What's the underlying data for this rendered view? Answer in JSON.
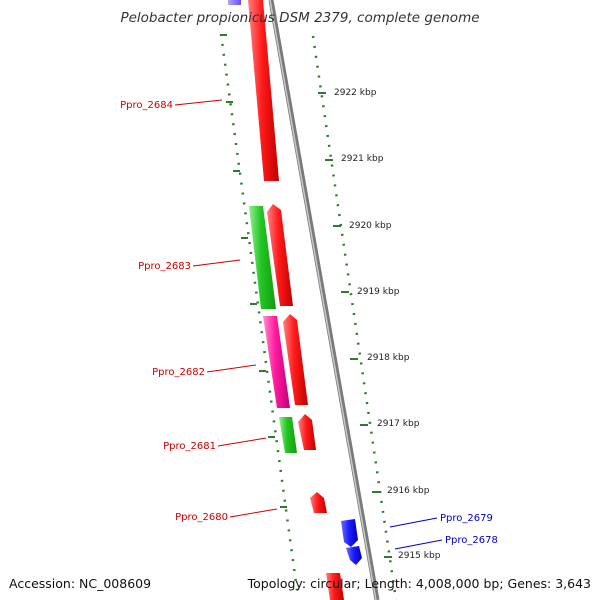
{
  "title": "Pelobacter propionicus DSM 2379, complete genome",
  "footer": {
    "accession": "Accession: NC_008609",
    "summary": "Topology: circular; Length: 4,008,000 bp; Genes: 3,643"
  },
  "colors": {
    "backbone": "#8c8c8c",
    "forward_gene": "#ff1a1a",
    "reverse_gene": "#1a1aff",
    "green_feature": "#22c522",
    "magenta_feature": "#ff1aa0",
    "purple_feature": "#7a5cff",
    "tick": "#2f7a2f",
    "label_forward": "#cc0000",
    "label_reverse": "#0000cc"
  },
  "scale_labels": [
    "2922 kbp",
    "2921 kbp",
    "2920 kbp",
    "2919 kbp",
    "2918 kbp",
    "2917 kbp",
    "2916 kbp",
    "2915 kbp"
  ],
  "gene_labels": [
    {
      "id": "Ppro_2684",
      "text": "Ppro_2684",
      "strand": "forward"
    },
    {
      "id": "Ppro_2683",
      "text": "Ppro_2683",
      "strand": "forward"
    },
    {
      "id": "Ppro_2682",
      "text": "Ppro_2682",
      "strand": "forward"
    },
    {
      "id": "Ppro_2681",
      "text": "Ppro_2681",
      "strand": "forward"
    },
    {
      "id": "Ppro_2680",
      "text": "Ppro_2680",
      "strand": "forward"
    },
    {
      "id": "Ppro_2679",
      "text": "Ppro_2679",
      "strand": "reverse"
    },
    {
      "id": "Ppro_2678",
      "text": "Ppro_2678",
      "strand": "reverse"
    }
  ]
}
